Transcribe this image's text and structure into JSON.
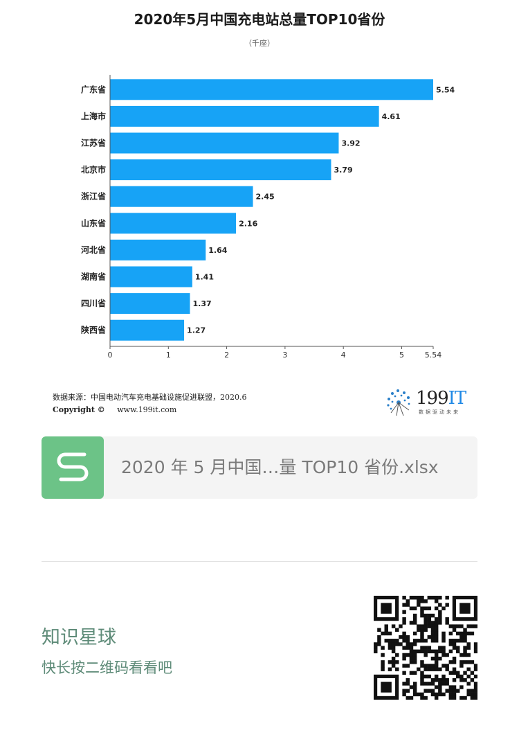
{
  "chart_data": {
    "type": "bar",
    "orientation": "horizontal",
    "title": "2020年5月中国充电站总量TOP10省份",
    "subtitle": "（千座）",
    "categories": [
      "广东省",
      "上海市",
      "江苏省",
      "北京市",
      "浙江省",
      "山东省",
      "河北省",
      "湖南省",
      "四川省",
      "陕西省"
    ],
    "values": [
      5.54,
      4.61,
      3.92,
      3.79,
      2.45,
      2.16,
      1.64,
      1.41,
      1.37,
      1.27
    ],
    "value_labels": [
      "5.54",
      "4.61",
      "3.92",
      "3.79",
      "2.45",
      "2.16",
      "1.64",
      "1.41",
      "1.37",
      "1.27"
    ],
    "x_ticks": [
      0,
      1,
      2,
      3,
      4,
      5,
      5.54
    ],
    "x_tick_labels": [
      "0",
      "1",
      "2",
      "3",
      "4",
      "5",
      "5.54"
    ],
    "xlim": [
      0,
      5.54
    ],
    "grid": false,
    "bar_color": "#17a3f6"
  },
  "source_text": "数据来源：中国电动汽车充电基础设施促进联盟，2020.6",
  "copyright_label": "Copyright ©",
  "copyright_url": "www.199it.com",
  "logo": {
    "number": "199",
    "letters": "IT",
    "slogan": "数据驱动未来"
  },
  "file_card": {
    "icon": "s-file-icon",
    "name": "2020 年 5 月中国…量 TOP10 省份.xlsx"
  },
  "promo": {
    "title": "知识星球",
    "subtitle": "快长按二维码看看吧"
  }
}
